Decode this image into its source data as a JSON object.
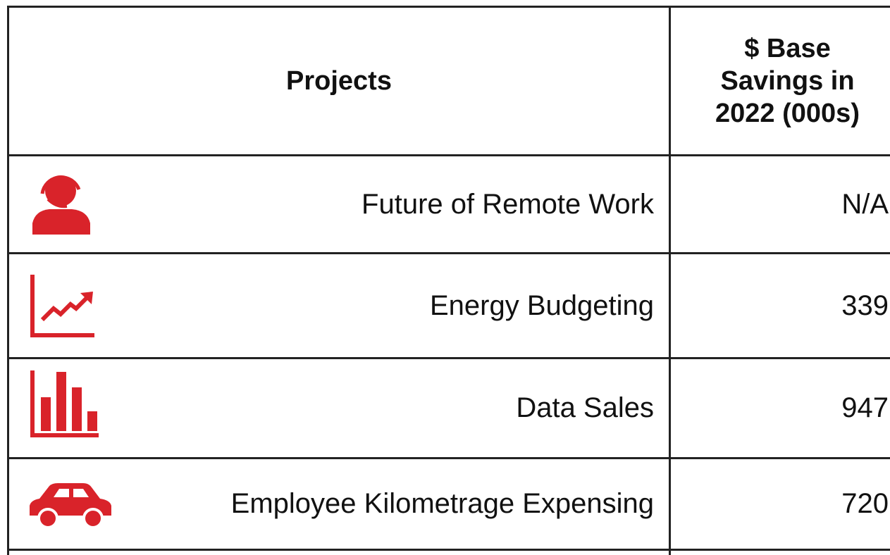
{
  "table": {
    "header": [
      "Projects",
      "$ Base Savings in 2022 (000s)"
    ],
    "rows": [
      [
        "Future of Remote Work",
        "N/A"
      ],
      [
        "Energy Budgeting",
        339
      ],
      [
        "Data Sales",
        947
      ],
      [
        "Employee Kilometrage Expensing",
        720
      ]
    ]
  }
}
